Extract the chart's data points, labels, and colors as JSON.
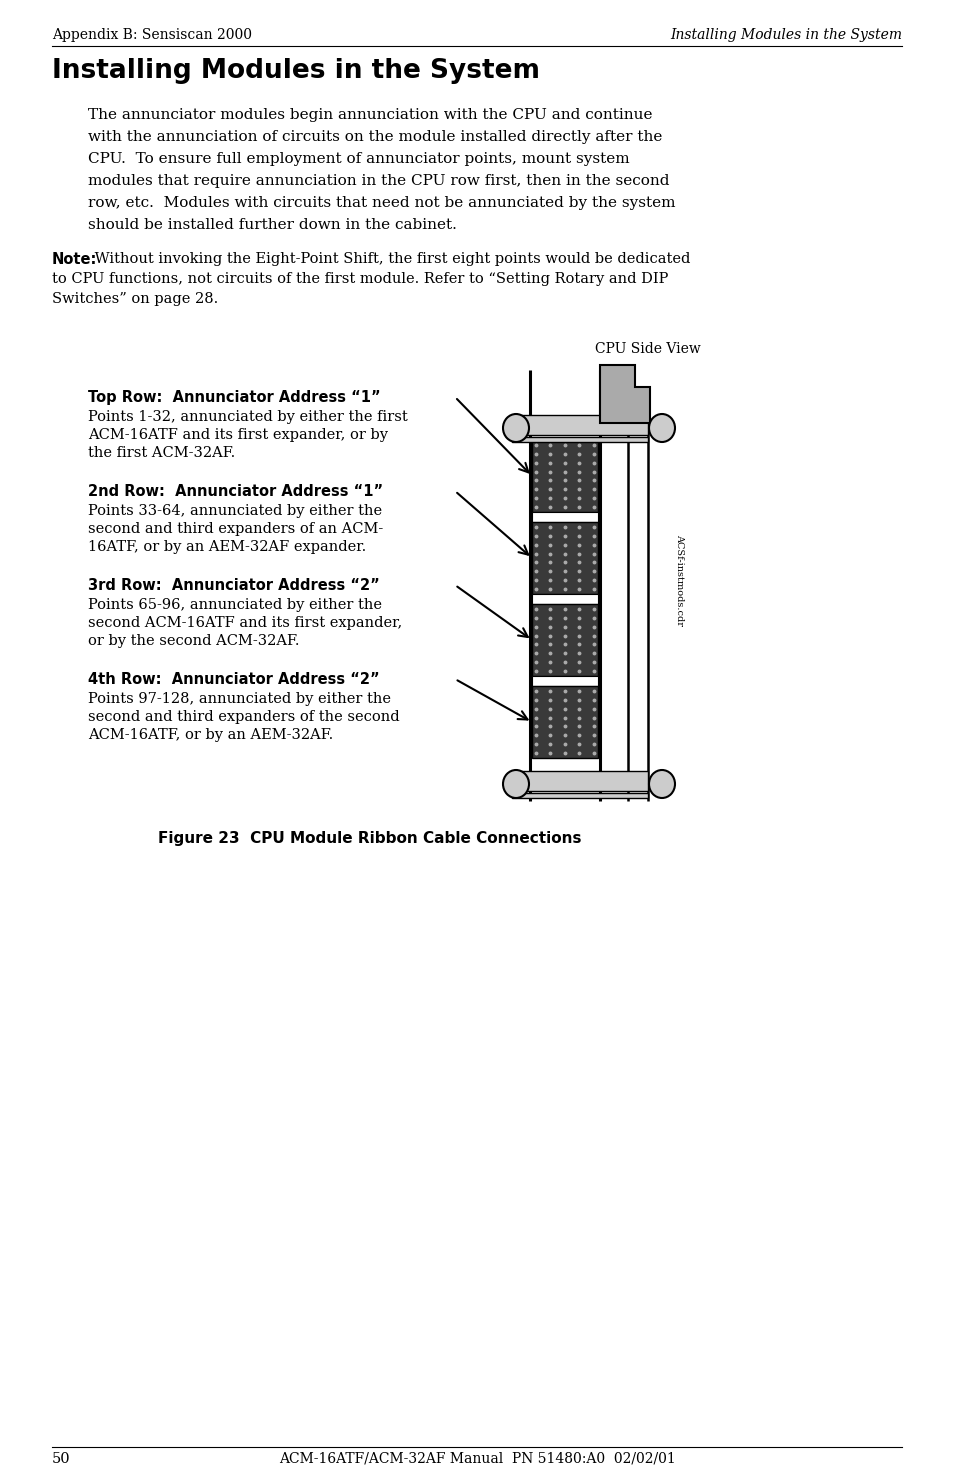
{
  "page_num": "50",
  "footer_text": "ACM-16ATF/ACM-32AF Manual  PN 51480:A0  02/02/01",
  "header_left": "Appendix B: Sensiscan 2000",
  "header_right": "Installing Modules in the System",
  "title": "Installing Modules in the System",
  "body_lines": [
    "The annunciator modules begin annunciation with the CPU and continue",
    "with the annunciation of circuits on the module installed directly after the",
    "CPU.  To ensure full employment of annunciator points, mount system",
    "modules that require annunciation in the CPU row first, then in the second",
    "row, etc.  Modules with circuits that need not be annunciated by the system",
    "should be installed further down in the cabinet."
  ],
  "note_bold": "Note:",
  "note_lines": [
    " Without invoking the Eight-Point Shift, the first eight points would be dedicated",
    "to CPU functions, not circuits of the first module. Refer to “Setting Rotary and DIP",
    "Switches” on page 28."
  ],
  "cpu_side_label": "CPU Side View",
  "rows": [
    {
      "label_bold": "Top Row:  Annunciator Address “1”",
      "label_lines": [
        "Points 1-32, annunciated by either the first",
        "ACM-16ATF and its first expander, or by",
        "the first ACM-32AF."
      ]
    },
    {
      "label_bold": "2nd Row:  Annunciator Address “1”",
      "label_lines": [
        "Points 33-64, annunciated by either the",
        "second and third expanders of an ACM-",
        "16ATF, or by an AEM-32AF expander."
      ]
    },
    {
      "label_bold": "3rd Row:  Annunciator Address “2”",
      "label_lines": [
        "Points 65-96, annunciated by either the",
        "second ACM-16ATF and its first expander,",
        "or by the second ACM-32AF."
      ]
    },
    {
      "label_bold": "4th Row:  Annunciator Address “2”",
      "label_lines": [
        "Points 97-128, annunciated by either the",
        "second and third expanders of the second",
        "ACM-16ATF, or by an AEM-32AF."
      ]
    }
  ],
  "figure_caption": "Figure 23  CPU Module Ribbon Cable Connections",
  "side_label": "ACSf-instmods.cdr",
  "bg_color": "#ffffff",
  "text_color": "#000000"
}
